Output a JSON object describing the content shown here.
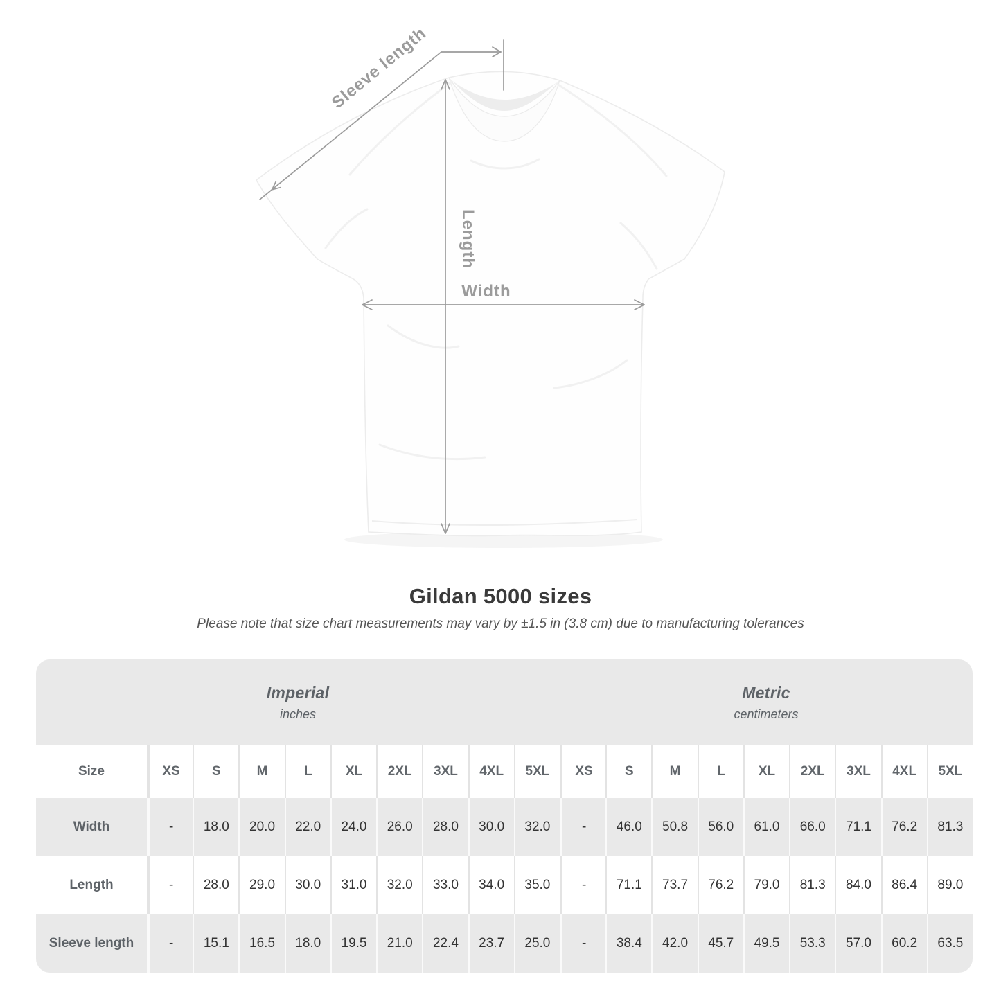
{
  "diagram": {
    "labels": {
      "sleeve_length": "Sleeve length",
      "length": "Length",
      "width": "Width"
    },
    "annotation_color": "#9b9b9b"
  },
  "heading": {
    "title": "Gildan 5000 sizes",
    "subtitle": "Please note that size chart measurements may vary by ±1.5 in (3.8 cm) due to manufacturing tolerances"
  },
  "size_table": {
    "corner_label": "Size",
    "unit_groups": [
      {
        "name": "Imperial",
        "unit": "inches"
      },
      {
        "name": "Metric",
        "unit": "centimeters"
      }
    ],
    "size_columns": [
      "XS",
      "S",
      "M",
      "L",
      "XL",
      "2XL",
      "3XL",
      "4XL",
      "5XL"
    ],
    "rows": [
      {
        "label": "Width",
        "imperial": [
          "-",
          "18.0",
          "20.0",
          "22.0",
          "24.0",
          "26.0",
          "28.0",
          "30.0",
          "32.0"
        ],
        "metric": [
          "-",
          "46.0",
          "50.8",
          "56.0",
          "61.0",
          "66.0",
          "71.1",
          "76.2",
          "81.3"
        ]
      },
      {
        "label": "Length",
        "imperial": [
          "-",
          "28.0",
          "29.0",
          "30.0",
          "31.0",
          "32.0",
          "33.0",
          "34.0",
          "35.0"
        ],
        "metric": [
          "-",
          "71.1",
          "73.7",
          "76.2",
          "79.0",
          "81.3",
          "84.0",
          "86.4",
          "89.0"
        ]
      },
      {
        "label": "Sleeve length",
        "imperial": [
          "-",
          "15.1",
          "16.5",
          "18.0",
          "19.5",
          "21.0",
          "22.4",
          "23.7",
          "25.0"
        ],
        "metric": [
          "-",
          "38.4",
          "42.0",
          "45.7",
          "49.5",
          "53.3",
          "57.0",
          "60.2",
          "63.5"
        ]
      }
    ]
  },
  "colors": {
    "table_gray": "#e9e9e9",
    "value_text": "#333333",
    "header_text": "#61666b",
    "annotation": "#9b9b9b"
  }
}
